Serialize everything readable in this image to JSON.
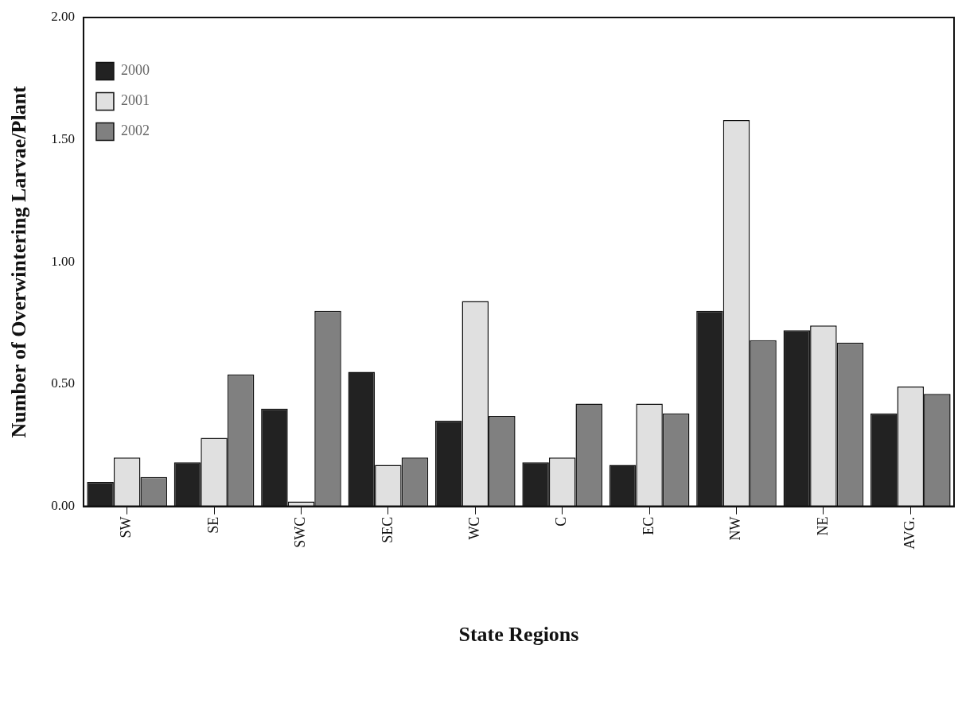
{
  "chart_data": {
    "type": "bar",
    "xlabel": "State Regions",
    "ylabel": "Number of Overwintering Larvae/Plant",
    "categories": [
      "SW",
      "SE",
      "SWC",
      "SEC",
      "WC",
      "C",
      "EC",
      "NW",
      "NE",
      "AVG."
    ],
    "series": [
      {
        "name": "2000",
        "color": "#222222",
        "values": [
          0.1,
          0.18,
          0.4,
          0.55,
          0.35,
          0.18,
          0.17,
          0.8,
          0.72,
          0.38
        ]
      },
      {
        "name": "2001",
        "color": "#e0e0e0",
        "values": [
          0.2,
          0.28,
          0.02,
          0.17,
          0.84,
          0.2,
          0.42,
          1.58,
          0.74,
          0.49
        ]
      },
      {
        "name": "2002",
        "color": "#808080",
        "values": [
          0.12,
          0.54,
          0.8,
          0.2,
          0.37,
          0.42,
          0.38,
          0.68,
          0.67,
          0.46
        ]
      }
    ],
    "ylim": [
      0,
      2
    ],
    "yticks": [
      {
        "value": 0,
        "label": "0.00"
      },
      {
        "value": 0.5,
        "label": "0.50"
      },
      {
        "value": 1,
        "label": "1.00"
      },
      {
        "value": 1.5,
        "label": "1.50"
      },
      {
        "value": 2,
        "label": "2.00"
      }
    ],
    "grid": false,
    "legend": "top left"
  }
}
